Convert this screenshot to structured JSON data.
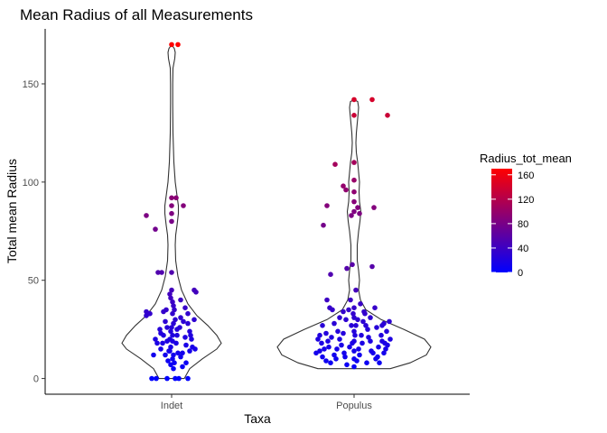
{
  "chart_data": {
    "type": "scatter",
    "subtype": "violin-with-jitter",
    "title": "Mean Radius of all Measurements",
    "xlabel": "Taxa",
    "ylabel": "Total mean Radius",
    "categories": [
      "Indet",
      "Populus"
    ],
    "ylim": [
      -8,
      178
    ],
    "yticks": [
      0,
      50,
      100,
      150
    ],
    "grid": false,
    "legend": {
      "title": "Radius_tot_mean",
      "position": "right",
      "ticks": [
        0,
        40,
        80,
        120,
        160
      ],
      "range": [
        0,
        170
      ],
      "color_low": "#0000ff",
      "color_high": "#ff0000"
    },
    "violins": [
      {
        "category": "Indet",
        "outline": [
          [
            0,
            0.14
          ],
          [
            5,
            0.2
          ],
          [
            10,
            0.34
          ],
          [
            15,
            0.5
          ],
          [
            18,
            0.55
          ],
          [
            22,
            0.5
          ],
          [
            27,
            0.4
          ],
          [
            32,
            0.28
          ],
          [
            38,
            0.18
          ],
          [
            45,
            0.11
          ],
          [
            52,
            0.07
          ],
          [
            60,
            0.045
          ],
          [
            68,
            0.04
          ],
          [
            73,
            0.045
          ],
          [
            78,
            0.06
          ],
          [
            84,
            0.075
          ],
          [
            88,
            0.075
          ],
          [
            93,
            0.06
          ],
          [
            100,
            0.04
          ],
          [
            110,
            0.025
          ],
          [
            125,
            0.015
          ],
          [
            140,
            0.012
          ],
          [
            150,
            0.012
          ],
          [
            158,
            0.015
          ],
          [
            163,
            0.035
          ],
          [
            166,
            0.04
          ],
          [
            168,
            0.03
          ],
          [
            170,
            0.0
          ]
        ]
      },
      {
        "category": "Populus",
        "outline": [
          [
            5,
            0.4
          ],
          [
            8,
            0.62
          ],
          [
            12,
            0.8
          ],
          [
            16,
            0.85
          ],
          [
            20,
            0.78
          ],
          [
            25,
            0.55
          ],
          [
            30,
            0.3
          ],
          [
            35,
            0.13
          ],
          [
            40,
            0.07
          ],
          [
            45,
            0.05
          ],
          [
            50,
            0.06
          ],
          [
            55,
            0.05
          ],
          [
            60,
            0.035
          ],
          [
            68,
            0.035
          ],
          [
            75,
            0.05
          ],
          [
            80,
            0.065
          ],
          [
            85,
            0.075
          ],
          [
            90,
            0.06
          ],
          [
            95,
            0.055
          ],
          [
            100,
            0.06
          ],
          [
            105,
            0.05
          ],
          [
            110,
            0.04
          ],
          [
            115,
            0.025
          ],
          [
            120,
            0.02
          ],
          [
            125,
            0.025
          ],
          [
            130,
            0.035
          ],
          [
            135,
            0.045
          ],
          [
            138,
            0.05
          ],
          [
            141,
            0.04
          ],
          [
            142,
            0.0
          ]
        ]
      }
    ],
    "series": [
      {
        "category": "Indet",
        "points": [
          [
            -0.22,
            0
          ],
          [
            -0.17,
            0
          ],
          [
            -0.05,
            0
          ],
          [
            0.04,
            0
          ],
          [
            0.08,
            0
          ],
          [
            0.18,
            0
          ],
          [
            0,
            170
          ],
          [
            0.07,
            170
          ],
          [
            0.05,
            92
          ],
          [
            0,
            92
          ],
          [
            0,
            88
          ],
          [
            0,
            84
          ],
          [
            0,
            80
          ],
          [
            0.13,
            88
          ],
          [
            -0.18,
            76
          ],
          [
            -0.28,
            83
          ],
          [
            -0.15,
            54
          ],
          [
            -0.11,
            54
          ],
          [
            0.25,
            45
          ],
          [
            0.27,
            44
          ],
          [
            -0.28,
            34
          ],
          [
            -0.25,
            33
          ],
          [
            -0.28,
            32
          ],
          [
            -0.24,
            33
          ],
          [
            -0.18,
            20
          ],
          [
            -0.16,
            18
          ],
          [
            -0.12,
            23
          ],
          [
            -0.09,
            22
          ],
          [
            -0.2,
            12
          ],
          [
            -0.03,
            14
          ],
          [
            0.1,
            40
          ],
          [
            0.15,
            36
          ],
          [
            0.1,
            31
          ],
          [
            0.13,
            29
          ],
          [
            0.18,
            28
          ],
          [
            0.25,
            30
          ],
          [
            0.2,
            24
          ],
          [
            0.22,
            20
          ],
          [
            0.16,
            17
          ],
          [
            0.2,
            14
          ],
          [
            0.23,
            16
          ],
          [
            0.26,
            15
          ],
          [
            0.12,
            13
          ],
          [
            0.07,
            13
          ],
          [
            0.05,
            18
          ],
          [
            0.06,
            22
          ],
          [
            0.16,
            8
          ],
          [
            0.12,
            6
          ],
          [
            0.1,
            11
          ],
          [
            -0.06,
            35
          ],
          [
            -0.09,
            34
          ],
          [
            -0.07,
            29
          ],
          [
            -0.05,
            26
          ],
          [
            -0.02,
            20
          ],
          [
            -0.1,
            18
          ],
          [
            -0.13,
            25
          ],
          [
            -0.12,
            15
          ],
          [
            -0.07,
            12
          ],
          [
            0.01,
            10
          ],
          [
            0.02,
            5
          ],
          [
            -0.01,
            7
          ],
          [
            0.03,
            8
          ],
          [
            0.02,
            12
          ],
          [
            -0.01,
            16
          ],
          [
            0.01,
            22
          ],
          [
            0.02,
            28
          ],
          [
            0.01,
            33
          ],
          [
            0.02,
            37
          ],
          [
            -0.01,
            41
          ],
          [
            0.0,
            54
          ],
          [
            0.0,
            45
          ],
          [
            -0.02,
            43
          ],
          [
            0.01,
            39
          ],
          [
            0.0,
            26
          ],
          [
            -0.01,
            24
          ],
          [
            0.01,
            19
          ],
          [
            -0.02,
            14
          ],
          [
            0.03,
            35
          ],
          [
            0.04,
            30
          ],
          [
            0.06,
            25
          ],
          [
            -0.04,
            9
          ],
          [
            -0.05,
            19
          ],
          [
            0.15,
            21
          ],
          [
            0.09,
            26
          ],
          [
            0.18,
            33
          ],
          [
            0.21,
            22
          ]
        ]
      },
      {
        "category": "Populus",
        "points": [
          [
            0,
            142
          ],
          [
            0.2,
            142
          ],
          [
            0.37,
            134
          ],
          [
            0,
            134
          ],
          [
            0,
            110
          ],
          [
            0,
            101
          ],
          [
            0,
            95
          ],
          [
            -0.21,
            109
          ],
          [
            -0.12,
            98
          ],
          [
            -0.09,
            96
          ],
          [
            0.06,
            84
          ],
          [
            0.04,
            87
          ],
          [
            0,
            90
          ],
          [
            0,
            85
          ],
          [
            -0.03,
            83
          ],
          [
            0.22,
            87
          ],
          [
            -0.3,
            88
          ],
          [
            -0.34,
            78
          ],
          [
            0.2,
            57
          ],
          [
            -0.02,
            58
          ],
          [
            -0.08,
            56
          ],
          [
            -0.26,
            53
          ],
          [
            -0.3,
            40
          ],
          [
            -0.27,
            36
          ],
          [
            -0.24,
            35
          ],
          [
            -0.35,
            27
          ],
          [
            -0.38,
            22
          ],
          [
            -0.4,
            20
          ],
          [
            -0.36,
            18
          ],
          [
            -0.33,
            15
          ],
          [
            -0.38,
            14
          ],
          [
            -0.42,
            13
          ],
          [
            -0.35,
            11
          ],
          [
            -0.31,
            9
          ],
          [
            -0.26,
            8
          ],
          [
            -0.22,
            12
          ],
          [
            -0.19,
            15
          ],
          [
            -0.16,
            20
          ],
          [
            -0.12,
            23
          ],
          [
            -0.09,
            30
          ],
          [
            -0.06,
            35
          ],
          [
            -0.03,
            27
          ],
          [
            0.0,
            36
          ],
          [
            0.0,
            31
          ],
          [
            0.0,
            24
          ],
          [
            0.0,
            19
          ],
          [
            0.0,
            14
          ],
          [
            0.0,
            10
          ],
          [
            0.0,
            6
          ],
          [
            0.03,
            9
          ],
          [
            0.05,
            15
          ],
          [
            0.08,
            22
          ],
          [
            0.1,
            29
          ],
          [
            0.12,
            33
          ],
          [
            0.15,
            25
          ],
          [
            0.18,
            19
          ],
          [
            0.21,
            13
          ],
          [
            0.24,
            10
          ],
          [
            0.27,
            16
          ],
          [
            0.3,
            22
          ],
          [
            0.33,
            28
          ],
          [
            0.36,
            24
          ],
          [
            0.39,
            29
          ],
          [
            0.4,
            20
          ],
          [
            0.37,
            17
          ],
          [
            0.33,
            13
          ],
          [
            0.28,
            8
          ],
          [
            0.23,
            36
          ],
          [
            0.18,
            31
          ],
          [
            0.13,
            27
          ],
          [
            0.09,
            18
          ],
          [
            0.06,
            12
          ],
          [
            -0.05,
            16
          ],
          [
            -0.1,
            11
          ],
          [
            -0.14,
            17
          ],
          [
            -0.18,
            24
          ],
          [
            -0.22,
            28
          ],
          [
            -0.25,
            21
          ],
          [
            -0.28,
            16
          ],
          [
            -0.2,
            10
          ],
          [
            -0.08,
            7
          ],
          [
            0.14,
            8
          ],
          [
            0.19,
            14
          ],
          [
            0.25,
            26
          ],
          [
            0.31,
            19
          ],
          [
            0.35,
            15
          ],
          [
            -0.12,
            34
          ],
          [
            -0.04,
            40
          ],
          [
            0.02,
            45
          ],
          [
            0.07,
            38
          ],
          [
            0.11,
            34
          ],
          [
            -0.16,
            31
          ],
          [
            -0.31,
            23
          ],
          [
            -0.29,
            19
          ],
          [
            -0.11,
            13
          ],
          [
            0.01,
            22
          ],
          [
            -0.02,
            18
          ],
          [
            0.02,
            27
          ],
          [
            -0.01,
            33
          ],
          [
            0.04,
            30
          ],
          [
            0.16,
            21
          ],
          [
            0.26,
            11
          ],
          [
            0.31,
            27
          ],
          [
            0.34,
            18
          ]
        ]
      }
    ]
  }
}
